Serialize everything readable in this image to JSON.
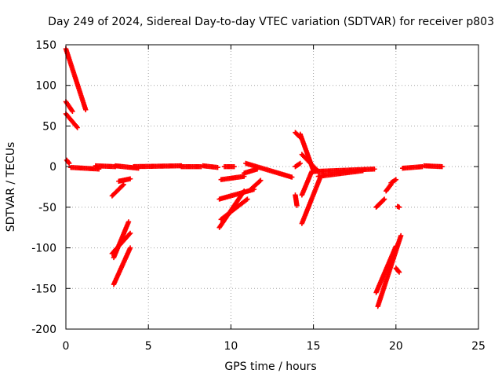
{
  "chart_data": {
    "type": "scatter",
    "title": "Day 249 of 2024, Sidereal Day-to-day VTEC variation (SDTVAR) for receiver p803",
    "xlabel": "GPS time / hours",
    "ylabel": "SDTVAR / TECUs",
    "xlim": [
      0,
      25
    ],
    "ylim": [
      -200,
      150
    ],
    "xticks": [
      0,
      5,
      10,
      15,
      20,
      25
    ],
    "yticks": [
      -200,
      -150,
      -100,
      -50,
      0,
      50,
      100,
      150
    ],
    "grid": true,
    "marker": "plus",
    "color": "#ff0000",
    "series": [
      {
        "name": "SDTVAR",
        "segments": [
          {
            "x0": 0.0,
            "y0": 145,
            "x1": 1.2,
            "y1": 70
          },
          {
            "x0": 0.0,
            "y0": 80,
            "x1": 0.4,
            "y1": 68
          },
          {
            "x0": 0.0,
            "y0": 65,
            "x1": 0.7,
            "y1": 48
          },
          {
            "x0": 0.05,
            "y0": 8,
            "x1": 0.2,
            "y1": 4
          },
          {
            "x0": 0.3,
            "y0": -1,
            "x1": 2.0,
            "y1": -3
          },
          {
            "x0": 1.8,
            "y0": 1,
            "x1": 3.0,
            "y1": 0
          },
          {
            "x0": 3.0,
            "y0": 1,
            "x1": 4.4,
            "y1": -2
          },
          {
            "x0": 2.8,
            "y0": -36,
            "x1": 3.5,
            "y1": -22
          },
          {
            "x0": 3.2,
            "y0": -18,
            "x1": 3.9,
            "y1": -15
          },
          {
            "x0": 2.9,
            "y0": -112,
            "x1": 3.8,
            "y1": -68
          },
          {
            "x0": 2.8,
            "y0": -107,
            "x1": 3.9,
            "y1": -82
          },
          {
            "x0": 2.9,
            "y0": -145,
            "x1": 3.9,
            "y1": -100
          },
          {
            "x0": 4.1,
            "y0": 0,
            "x1": 7.0,
            "y1": 1
          },
          {
            "x0": 7.0,
            "y0": 0,
            "x1": 8.2,
            "y1": 0
          },
          {
            "x0": 8.3,
            "y0": 1,
            "x1": 9.2,
            "y1": -1
          },
          {
            "x0": 9.3,
            "y0": -75,
            "x1": 10.8,
            "y1": -30
          },
          {
            "x0": 9.4,
            "y0": -65,
            "x1": 11.0,
            "y1": -40
          },
          {
            "x0": 9.3,
            "y0": -40,
            "x1": 11.4,
            "y1": -28
          },
          {
            "x0": 9.4,
            "y0": -16,
            "x1": 10.8,
            "y1": -12
          },
          {
            "x0": 10.8,
            "y0": -8,
            "x1": 11.6,
            "y1": -3
          },
          {
            "x0": 10.9,
            "y0": 4,
            "x1": 13.7,
            "y1": -13
          },
          {
            "x0": 11.2,
            "y0": -28,
            "x1": 11.8,
            "y1": -17
          },
          {
            "x0": 9.6,
            "y0": 0,
            "x1": 10.2,
            "y1": 0
          },
          {
            "x0": 13.9,
            "y0": 0,
            "x1": 14.2,
            "y1": 4
          },
          {
            "x0": 13.9,
            "y0": 42,
            "x1": 14.2,
            "y1": 36
          },
          {
            "x0": 14.2,
            "y0": 40,
            "x1": 15.0,
            "y1": -5
          },
          {
            "x0": 14.3,
            "y0": 15,
            "x1": 15.3,
            "y1": -6
          },
          {
            "x0": 14.3,
            "y0": -35,
            "x1": 14.9,
            "y1": -6
          },
          {
            "x0": 14.3,
            "y0": -70,
            "x1": 15.4,
            "y1": -14
          },
          {
            "x0": 15.0,
            "y0": -6,
            "x1": 18.7,
            "y1": -3
          },
          {
            "x0": 15.3,
            "y0": -12,
            "x1": 18.0,
            "y1": -5
          },
          {
            "x0": 13.9,
            "y0": -35,
            "x1": 14.0,
            "y1": -48
          },
          {
            "x0": 18.8,
            "y0": -50,
            "x1": 19.3,
            "y1": -40
          },
          {
            "x0": 19.4,
            "y0": -30,
            "x1": 19.7,
            "y1": -22
          },
          {
            "x0": 19.7,
            "y0": -20,
            "x1": 20.0,
            "y1": -16
          },
          {
            "x0": 18.8,
            "y0": -155,
            "x1": 20.0,
            "y1": -98
          },
          {
            "x0": 18.9,
            "y0": -172,
            "x1": 20.3,
            "y1": -85
          },
          {
            "x0": 20.0,
            "y0": -125,
            "x1": 20.2,
            "y1": -130
          },
          {
            "x0": 20.1,
            "y0": -49,
            "x1": 20.2,
            "y1": -50
          },
          {
            "x0": 20.4,
            "y0": -2,
            "x1": 21.6,
            "y1": 0
          },
          {
            "x0": 21.7,
            "y0": 1,
            "x1": 22.8,
            "y1": 0
          }
        ]
      }
    ]
  }
}
